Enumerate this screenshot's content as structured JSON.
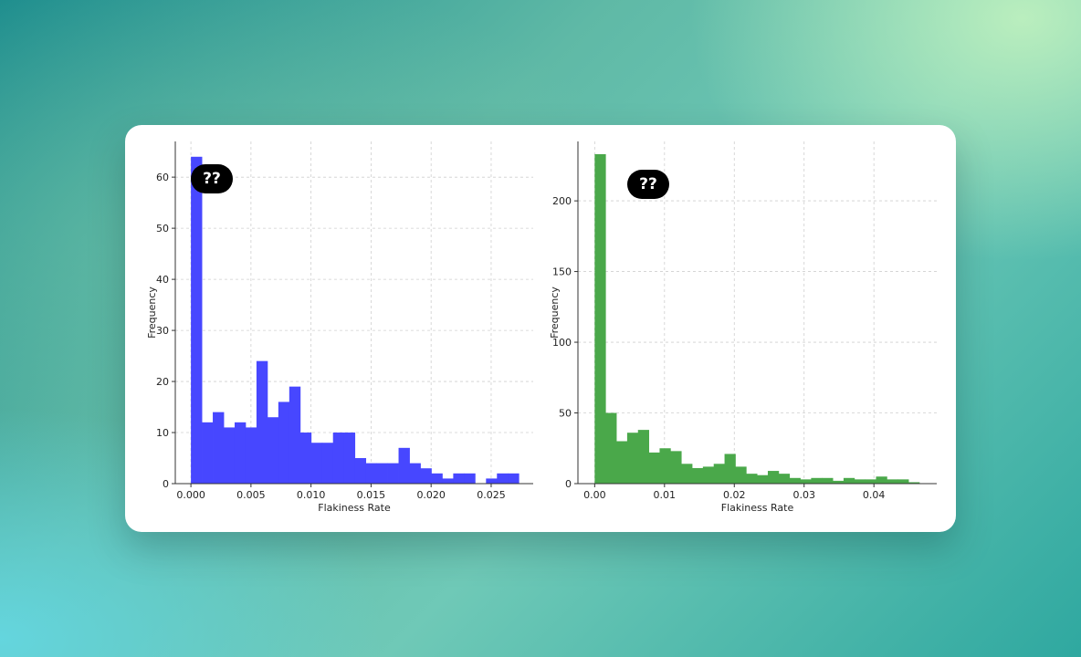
{
  "badges": {
    "left": "??",
    "right": "??"
  },
  "chart_data": [
    {
      "type": "bar",
      "subtype": "histogram",
      "color": "#4747ff",
      "xlabel": "Flakiness Rate",
      "ylabel": "Frequency",
      "xlim": [
        -0.0013,
        0.0285
      ],
      "ylim": [
        0,
        67
      ],
      "xticks": [
        0.0,
        0.005,
        0.01,
        0.015,
        0.02,
        0.025
      ],
      "xtick_labels": [
        "0.000",
        "0.005",
        "0.010",
        "0.015",
        "0.020",
        "0.025"
      ],
      "yticks": [
        0,
        10,
        20,
        30,
        40,
        50,
        60
      ],
      "grid": true,
      "bin_start": 0.0,
      "bin_width": 0.00091,
      "counts": [
        64,
        12,
        14,
        11,
        12,
        11,
        24,
        13,
        16,
        19,
        10,
        8,
        8,
        10,
        10,
        5,
        4,
        4,
        4,
        7,
        4,
        3,
        2,
        1,
        2,
        2,
        0,
        1,
        2,
        2
      ]
    },
    {
      "type": "bar",
      "subtype": "histogram",
      "color": "#4aa84a",
      "xlabel": "Flakiness Rate",
      "ylabel": "Frequency",
      "xlim": [
        -0.0024,
        0.049
      ],
      "ylim": [
        0,
        242
      ],
      "xticks": [
        0.0,
        0.01,
        0.02,
        0.03,
        0.04
      ],
      "xtick_labels": [
        "0.00",
        "0.01",
        "0.02",
        "0.03",
        "0.04"
      ],
      "yticks": [
        0,
        50,
        100,
        150,
        200
      ],
      "grid": true,
      "bin_start": 0.0,
      "bin_width": 0.00155,
      "counts": [
        233,
        50,
        30,
        36,
        38,
        22,
        25,
        23,
        14,
        11,
        12,
        14,
        21,
        12,
        7,
        6,
        9,
        7,
        4,
        3,
        4,
        4,
        2,
        4,
        3,
        3,
        5,
        3,
        3,
        1
      ]
    }
  ]
}
